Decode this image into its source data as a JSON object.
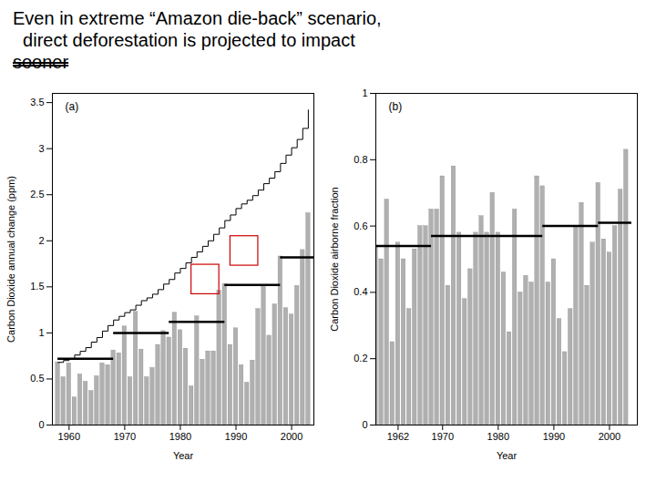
{
  "title": [
    "Even in extreme “Amazon die-back” scenario,",
    "  direct deforestation is projected to impact",
    "sooner"
  ],
  "chart_data": [
    {
      "type": "bar",
      "annotation": "(a)",
      "xlabel": "Year",
      "ylabel": "Carbon Dioxide annual change (ppm)",
      "x": [
        1958,
        1959,
        1960,
        1961,
        1962,
        1963,
        1964,
        1965,
        1966,
        1967,
        1968,
        1969,
        1970,
        1971,
        1972,
        1973,
        1974,
        1975,
        1976,
        1977,
        1978,
        1979,
        1980,
        1981,
        1982,
        1983,
        1984,
        1985,
        1986,
        1987,
        1988,
        1989,
        1990,
        1991,
        1992,
        1993,
        1994,
        1995,
        1996,
        1997,
        1998,
        1999,
        2000,
        2001,
        2002,
        2003
      ],
      "series": [
        {
          "type": "bar",
          "color": "#b0b0b0",
          "values": [
            0.68,
            0.52,
            0.67,
            0.3,
            0.55,
            0.47,
            0.37,
            0.53,
            0.67,
            0.65,
            0.81,
            0.78,
            1.07,
            0.52,
            1.23,
            0.82,
            0.52,
            0.62,
            0.87,
            1.02,
            0.95,
            1.22,
            1.03,
            0.83,
            0.42,
            1.18,
            0.71,
            0.8,
            0.8,
            1.46,
            1.53,
            0.87,
            1.05,
            0.65,
            0.46,
            0.7,
            1.26,
            1.5,
            0.97,
            1.31,
            1.83,
            1.27,
            1.2,
            1.51,
            1.9,
            2.3
          ]
        },
        {
          "type": "step",
          "color": "#000000",
          "values": [
            0.68,
            0.7,
            0.72,
            0.76,
            0.8,
            0.84,
            0.9,
            0.95,
            1.02,
            1.08,
            1.14,
            1.18,
            1.22,
            1.25,
            1.3,
            1.35,
            1.38,
            1.42,
            1.47,
            1.53,
            1.58,
            1.65,
            1.7,
            1.76,
            1.82,
            1.88,
            1.94,
            2.0,
            2.07,
            2.14,
            2.22,
            2.28,
            2.35,
            2.4,
            2.44,
            2.49,
            2.55,
            2.62,
            2.68,
            2.75,
            2.84,
            2.93,
            3.01,
            3.1,
            3.22,
            3.42
          ]
        }
      ],
      "averages": {
        "color": "#000000",
        "segments": [
          {
            "x": [
              1958,
              1968
            ],
            "y": 0.72
          },
          {
            "x": [
              1968,
              1978
            ],
            "y": 1.0
          },
          {
            "x": [
              1978,
              1988
            ],
            "y": 1.12
          },
          {
            "x": [
              1988,
              1998
            ],
            "y": 1.52
          },
          {
            "x": [
              1998,
              2004
            ],
            "y": 1.82
          }
        ]
      },
      "boxes": {
        "color": "#cc0000",
        "items": [
          {
            "x": 1982,
            "y": 1.42,
            "width": 5,
            "height": 0.32
          },
          {
            "x": 1989,
            "y": 1.73,
            "width": 5,
            "height": 0.32
          }
        ]
      },
      "xlim": [
        1957,
        2004
      ],
      "xticks": [
        1960,
        1970,
        1980,
        1990,
        2000
      ],
      "ylim": [
        0,
        3.6
      ],
      "yticks": [
        0,
        0.5,
        1,
        1.5,
        2,
        2.5,
        3,
        3.5
      ],
      "grid": false
    },
    {
      "type": "bar",
      "annotation": "(b)",
      "xlabel": "Year",
      "ylabel": "Carbon Dioxide airborne fraction",
      "x": [
        1958,
        1959,
        1960,
        1961,
        1962,
        1963,
        1964,
        1965,
        1966,
        1967,
        1968,
        1969,
        1970,
        1971,
        1972,
        1973,
        1974,
        1975,
        1976,
        1977,
        1978,
        1979,
        1980,
        1981,
        1982,
        1983,
        1984,
        1985,
        1986,
        1987,
        1988,
        1989,
        1990,
        1991,
        1992,
        1993,
        1994,
        1995,
        1996,
        1997,
        1998,
        1999,
        2000,
        2001,
        2002,
        2003
      ],
      "series": [
        {
          "type": "bar",
          "color": "#b0b0b0",
          "values": [
            0.54,
            0.5,
            0.68,
            0.25,
            0.55,
            0.5,
            0.35,
            0.53,
            0.6,
            0.6,
            0.65,
            0.65,
            0.75,
            0.42,
            0.78,
            0.58,
            0.38,
            0.47,
            0.58,
            0.63,
            0.58,
            0.7,
            0.58,
            0.46,
            0.28,
            0.65,
            0.4,
            0.45,
            0.43,
            0.75,
            0.72,
            0.43,
            0.5,
            0.32,
            0.22,
            0.35,
            0.6,
            0.67,
            0.42,
            0.55,
            0.73,
            0.56,
            0.52,
            0.6,
            0.71,
            0.83
          ]
        }
      ],
      "averages": {
        "color": "#000000",
        "segments": [
          {
            "x": [
              1958,
              1968
            ],
            "y": 0.54
          },
          {
            "x": [
              1968,
              1978
            ],
            "y": 0.57
          },
          {
            "x": [
              1978,
              1988
            ],
            "y": 0.57
          },
          {
            "x": [
              1988,
              1998
            ],
            "y": 0.6
          },
          {
            "x": [
              1998,
              2004
            ],
            "y": 0.61
          }
        ]
      },
      "xlim": [
        1958,
        2005
      ],
      "xticks": [
        1962,
        1970,
        1980,
        1990,
        2000
      ],
      "ylim": [
        0,
        1
      ],
      "yticks": [
        0,
        0.2,
        0.4,
        0.6,
        0.8,
        1
      ],
      "grid": false
    }
  ]
}
